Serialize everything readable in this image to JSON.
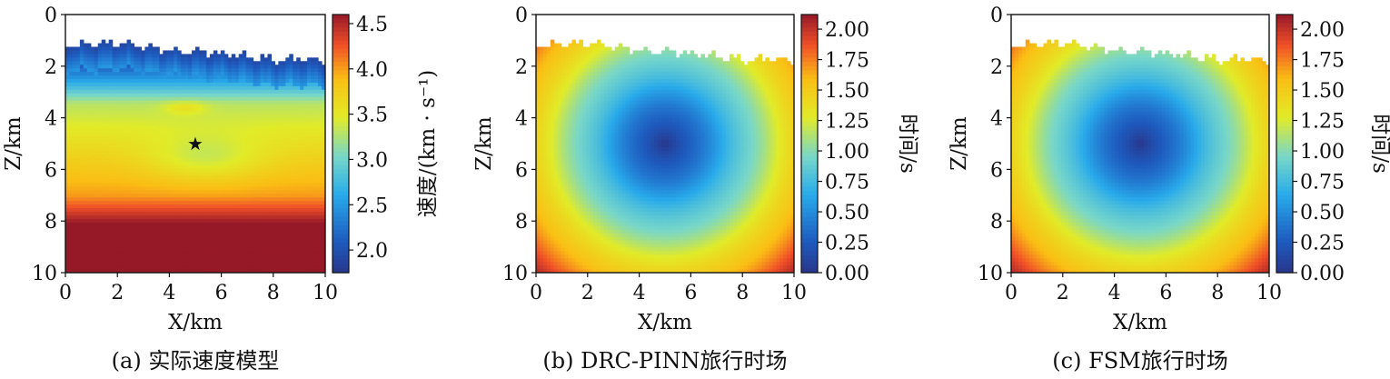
{
  "chart_data": [
    {
      "type": "heatmap",
      "caption": "(a) 实际速度模型",
      "xlabel": "X/km",
      "ylabel": "Z/km",
      "x_ticks": [
        "0",
        "2",
        "4",
        "6",
        "8",
        "10"
      ],
      "y_ticks": [
        "0",
        "2",
        "4",
        "6",
        "8",
        "10"
      ],
      "xlim": [
        0,
        10
      ],
      "ylim": [
        0,
        10
      ],
      "y_inverted": true,
      "colorbar": {
        "label": "速度/(km · s⁻¹)",
        "ticks": [
          "2.0",
          "2.5",
          "3.0",
          "3.5",
          "4.0",
          "4.5"
        ],
        "tick_values": [
          2.0,
          2.5,
          3.0,
          3.5,
          4.0,
          4.5
        ],
        "range": [
          1.75,
          4.6
        ],
        "colormap": "jet"
      },
      "source_marker": {
        "symbol": "★",
        "x": 5,
        "z": 5
      },
      "surface_topography_depth_km": [
        1.2,
        1.15,
        1.1,
        1.25,
        1.35,
        1.45,
        1.5,
        1.6,
        1.75,
        1.7,
        1.8
      ]
    },
    {
      "type": "heatmap",
      "caption": "(b) DRC-PINN旅行时场",
      "xlabel": "X/km",
      "ylabel": "Z/km",
      "x_ticks": [
        "0",
        "2",
        "4",
        "6",
        "8",
        "10"
      ],
      "y_ticks": [
        "0",
        "2",
        "4",
        "6",
        "8",
        "10"
      ],
      "xlim": [
        0,
        10
      ],
      "ylim": [
        0,
        10
      ],
      "y_inverted": true,
      "colorbar": {
        "label": "时间/s",
        "ticks": [
          "0.00",
          "0.25",
          "0.50",
          "0.75",
          "1.00",
          "1.25",
          "1.50",
          "1.75",
          "2.00"
        ],
        "tick_values": [
          0.0,
          0.25,
          0.5,
          0.75,
          1.0,
          1.25,
          1.5,
          1.75,
          2.0
        ],
        "range": [
          0.0,
          2.12
        ],
        "colormap": "jet"
      },
      "source_location": {
        "x": 5,
        "z": 5
      }
    },
    {
      "type": "heatmap",
      "caption": "(c) FSM旅行时场",
      "xlabel": "X/km",
      "ylabel": "Z/km",
      "x_ticks": [
        "0",
        "2",
        "4",
        "6",
        "8",
        "10"
      ],
      "y_ticks": [
        "0",
        "2",
        "4",
        "6",
        "8",
        "10"
      ],
      "xlim": [
        0,
        10
      ],
      "ylim": [
        0,
        10
      ],
      "y_inverted": true,
      "colorbar": {
        "label": "时间/s",
        "ticks": [
          "0.00",
          "0.25",
          "0.50",
          "0.75",
          "1.00",
          "1.25",
          "1.50",
          "1.75",
          "2.00"
        ],
        "tick_values": [
          0.0,
          0.25,
          0.5,
          0.75,
          1.0,
          1.25,
          1.5,
          1.75,
          2.0
        ],
        "range": [
          0.0,
          2.12
        ],
        "colormap": "jet"
      },
      "source_location": {
        "x": 5,
        "z": 5
      }
    }
  ]
}
